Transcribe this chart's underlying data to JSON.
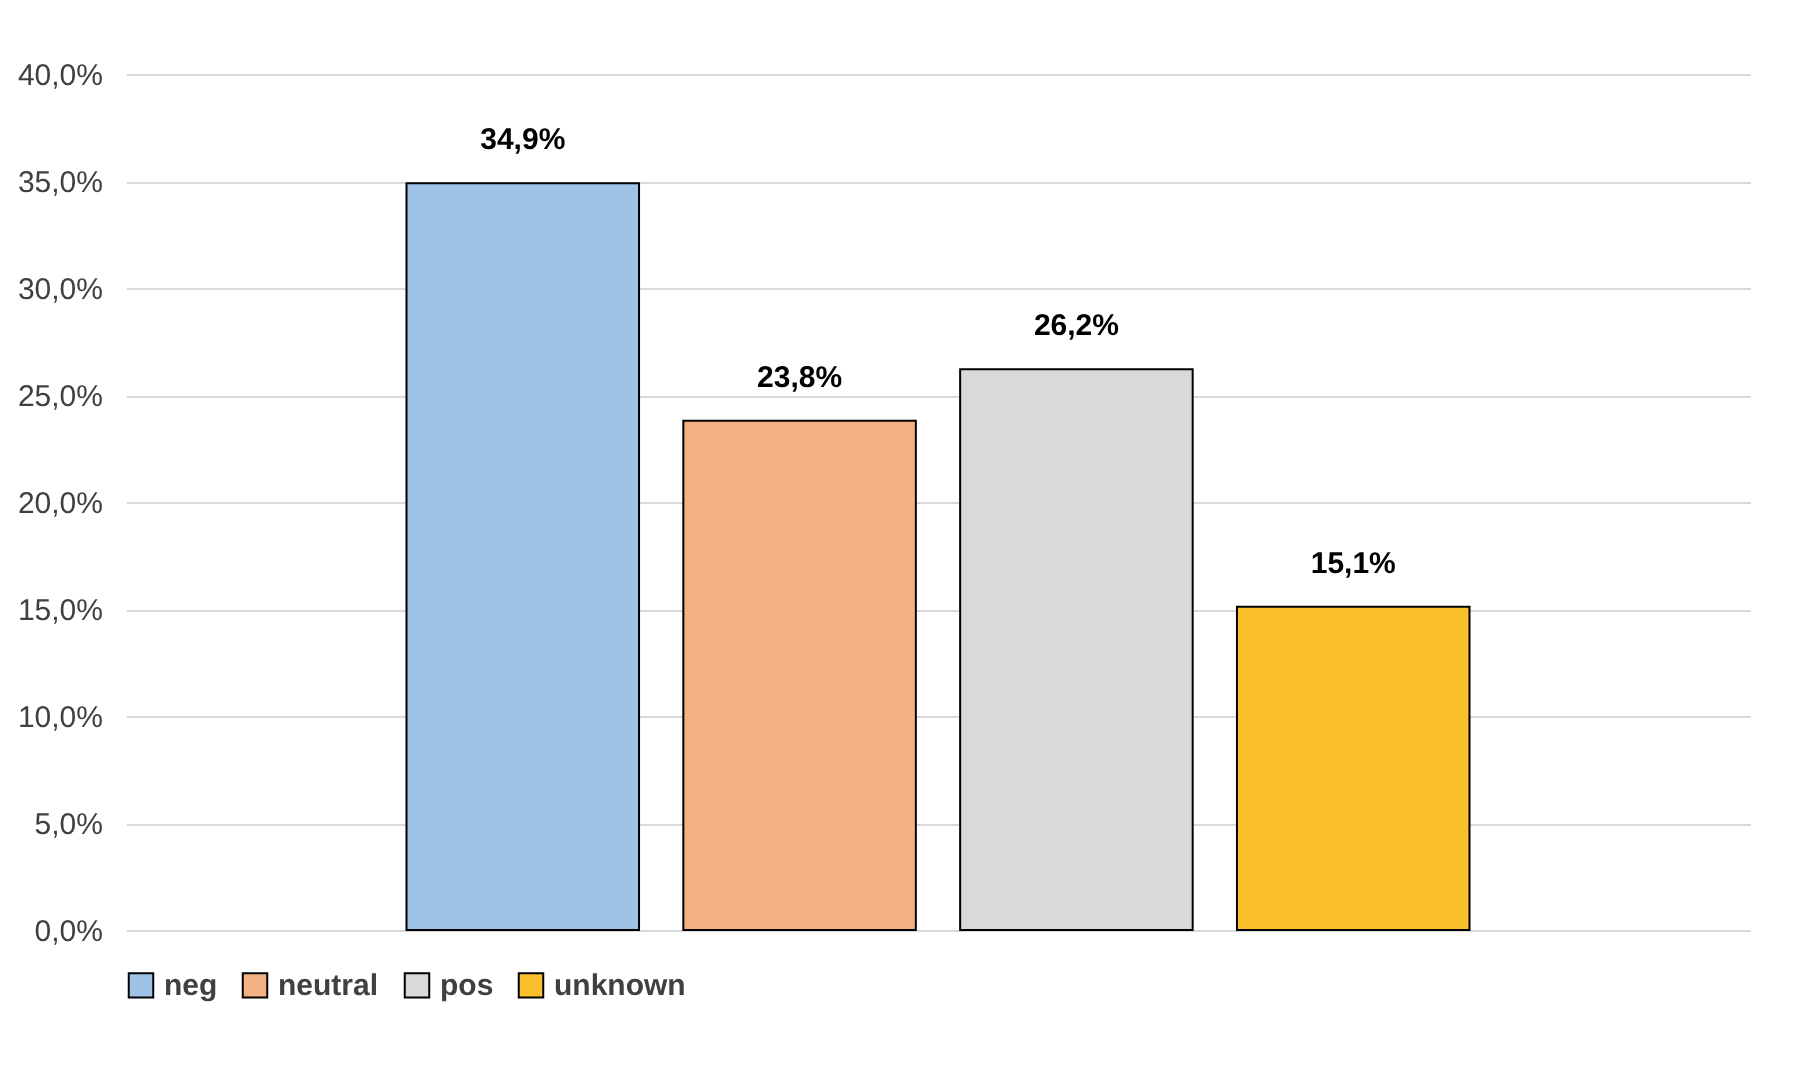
{
  "chart_data": {
    "type": "bar",
    "categories": [
      null
    ],
    "series": [
      {
        "name": "neg",
        "color": "#9dc3e6",
        "values": [
          34.9
        ],
        "value_labels": [
          "34,9%"
        ]
      },
      {
        "name": "neutral",
        "color": "#f4b183",
        "values": [
          23.8
        ],
        "value_labels": [
          "23,8%"
        ]
      },
      {
        "name": "pos",
        "color": "#d9d9d9",
        "values": [
          26.2
        ],
        "value_labels": [
          "26,2%"
        ]
      },
      {
        "name": "unknown",
        "color": "#fbc02d",
        "values": [
          15.1
        ],
        "value_labels": [
          "15,1%"
        ]
      }
    ],
    "ylim": [
      0,
      40
    ],
    "yticks": [
      {
        "value": 0,
        "label": "0,0%"
      },
      {
        "value": 5,
        "label": "5,0%"
      },
      {
        "value": 10,
        "label": "10,0%"
      },
      {
        "value": 15,
        "label": "15,0%"
      },
      {
        "value": 20,
        "label": "20,0%"
      },
      {
        "value": 25,
        "label": "25,0%"
      },
      {
        "value": 30,
        "label": "30,0%"
      },
      {
        "value": 35,
        "label": "35,0%"
      },
      {
        "value": 40,
        "label": "40,0%"
      }
    ],
    "grid": "y",
    "legend": "bottom"
  }
}
